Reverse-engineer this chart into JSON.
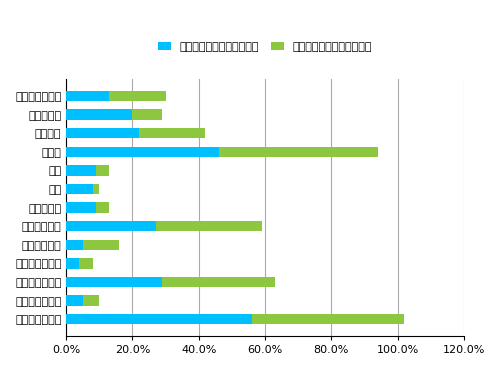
{
  "categories": [
    "日本の生ビール",
    "海外の生ビール",
    "日本の地ビール",
    "海外の地ビール",
    "日本のワイン",
    "海外のワイン",
    "ハイボール",
    "梅酒",
    "焼酎",
    "日本酒",
    "カクテル",
    "リキュール",
    "お酒を飲まない"
  ],
  "blue_values": [
    0.56,
    0.05,
    0.29,
    0.04,
    0.05,
    0.27,
    0.09,
    0.08,
    0.09,
    0.46,
    0.22,
    0.2,
    0.13
  ],
  "green_values": [
    0.46,
    0.05,
    0.34,
    0.04,
    0.11,
    0.32,
    0.04,
    0.02,
    0.04,
    0.48,
    0.2,
    0.09,
    0.17
  ],
  "blue_color": "#00BFFF",
  "green_color": "#8DC63F",
  "legend_blue": "日本を訪れたことがある人",
  "legend_green": "日本を訪れたことがない人",
  "legend_blue_bold": "ある",
  "legend_green_bold": "ない",
  "xlim": [
    0,
    1.2
  ],
  "xticks": [
    0.0,
    0.2,
    0.4,
    0.6,
    0.8,
    1.0,
    1.2
  ],
  "xticklabels": [
    "0.0%",
    "20.0%",
    "40.0%",
    "60.0%",
    "80.0%",
    "100.0%",
    "120.0%"
  ],
  "bar_height": 0.55,
  "background_color": "#FFFFFF",
  "grid_color": "#AAAAAA"
}
